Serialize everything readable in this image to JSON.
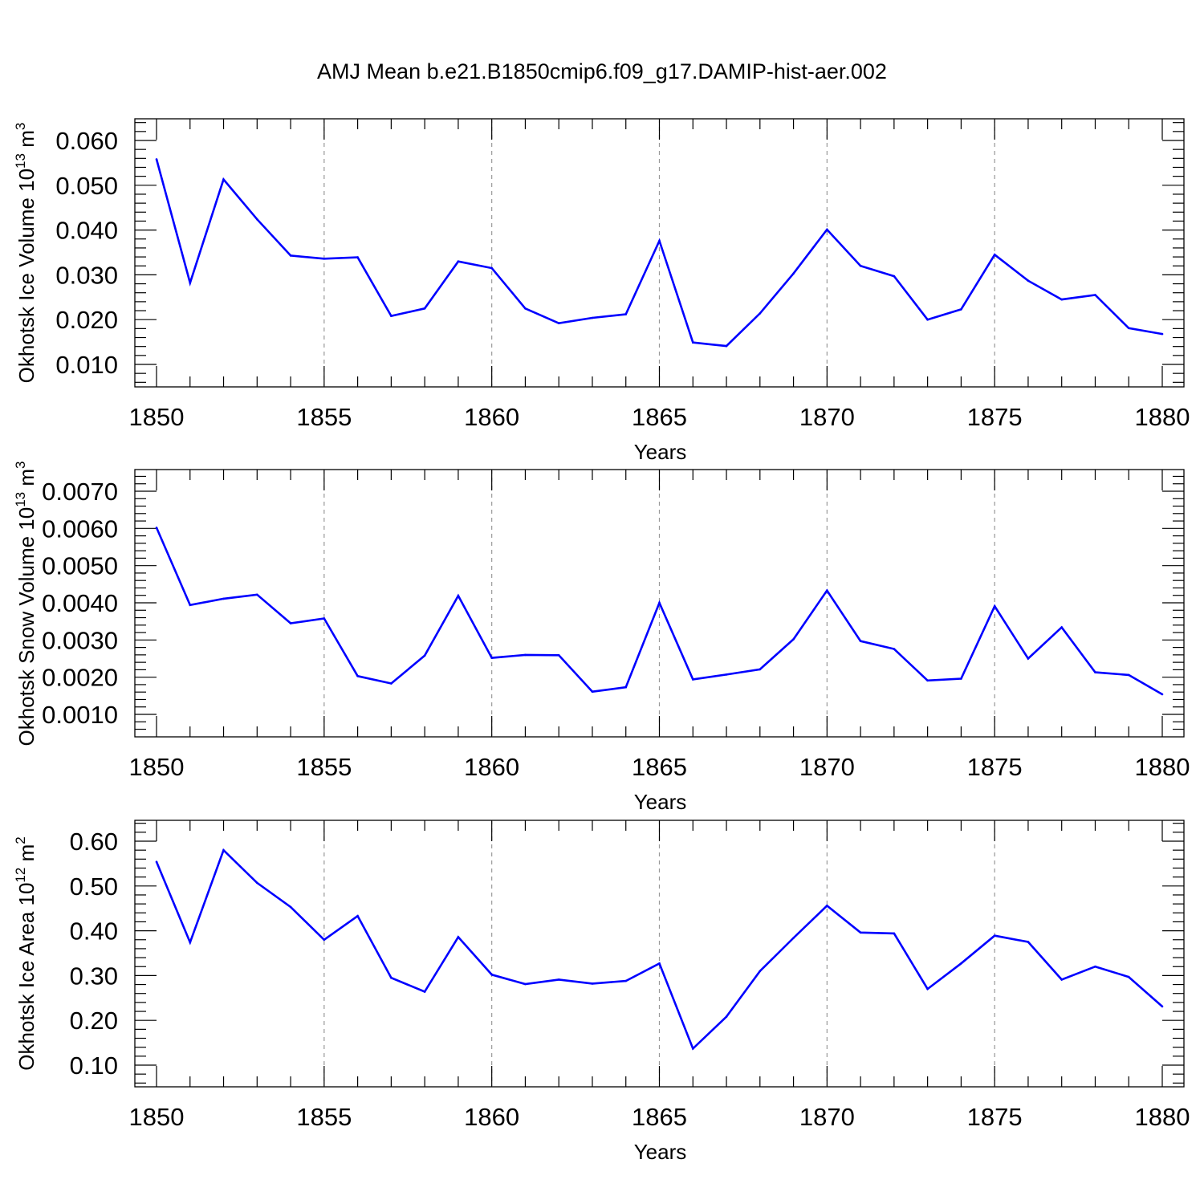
{
  "figure": {
    "title": "AMJ Mean b.e21.B1850cmip6.f09_g17.DAMIP-hist-aer.002",
    "line_color": "#0000ff",
    "grid_color": "#999999"
  },
  "chart_data": [
    {
      "type": "line",
      "title": "",
      "xlabel": "Years",
      "ylabel": {
        "main": "Okhotsk Ice Volume 10",
        "exp": "13",
        "unit": " m",
        "unit_exp": "3"
      },
      "xlim": [
        1850,
        1880
      ],
      "ylim": [
        0.01,
        0.06
      ],
      "x_ticks": [
        "1850",
        "1855",
        "1860",
        "1865",
        "1870",
        "1875",
        "1880"
      ],
      "y_ticks": [
        "0.010",
        "0.020",
        "0.030",
        "0.040",
        "0.050",
        "0.060"
      ],
      "grid": "vertical dashed at major x ticks",
      "x": [
        1850,
        1851,
        1852,
        1853,
        1854,
        1855,
        1856,
        1857,
        1858,
        1859,
        1860,
        1861,
        1862,
        1863,
        1864,
        1865,
        1866,
        1867,
        1868,
        1869,
        1870,
        1871,
        1872,
        1873,
        1874,
        1875,
        1876,
        1877,
        1878,
        1879,
        1880
      ],
      "values": [
        0.0558,
        0.0282,
        0.0513,
        0.0424,
        0.0343,
        0.0336,
        0.0339,
        0.0208,
        0.0225,
        0.033,
        0.0315,
        0.0225,
        0.0192,
        0.0204,
        0.0212,
        0.0376,
        0.0149,
        0.0141,
        0.0214,
        0.0303,
        0.0401,
        0.032,
        0.0297,
        0.02,
        0.0223,
        0.0345,
        0.0287,
        0.0245,
        0.0255,
        0.0181,
        0.0168
      ]
    },
    {
      "type": "line",
      "title": "",
      "xlabel": "Years",
      "ylabel": {
        "main": "Okhotsk Snow Volume 10",
        "exp": "13",
        "unit": " m",
        "unit_exp": "3"
      },
      "xlim": [
        1850,
        1880
      ],
      "ylim": [
        0.001,
        0.007
      ],
      "x_ticks": [
        "1850",
        "1855",
        "1860",
        "1865",
        "1870",
        "1875",
        "1880"
      ],
      "y_ticks": [
        "0.0010",
        "0.0020",
        "0.0030",
        "0.0040",
        "0.0050",
        "0.0060",
        "0.0070"
      ],
      "grid": "vertical dashed at major x ticks",
      "x": [
        1850,
        1851,
        1852,
        1853,
        1854,
        1855,
        1856,
        1857,
        1858,
        1859,
        1860,
        1861,
        1862,
        1863,
        1864,
        1865,
        1866,
        1867,
        1868,
        1869,
        1870,
        1871,
        1872,
        1873,
        1874,
        1875,
        1876,
        1877,
        1878,
        1879,
        1880
      ],
      "values": [
        0.00602,
        0.00394,
        0.00411,
        0.00422,
        0.00345,
        0.00358,
        0.00203,
        0.00183,
        0.00258,
        0.00419,
        0.00252,
        0.0026,
        0.00259,
        0.00161,
        0.00173,
        0.004,
        0.00194,
        0.00207,
        0.00221,
        0.00302,
        0.00433,
        0.00297,
        0.00276,
        0.00191,
        0.00196,
        0.00391,
        0.0025,
        0.00334,
        0.00213,
        0.00206,
        0.00154
      ]
    },
    {
      "type": "line",
      "title": "",
      "xlabel": "Years",
      "ylabel": {
        "main": "Okhotsk Ice Area 10",
        "exp": "12",
        "unit": " m",
        "unit_exp": "2"
      },
      "xlim": [
        1850,
        1880
      ],
      "ylim": [
        0.1,
        0.6
      ],
      "x_ticks": [
        "1850",
        "1855",
        "1860",
        "1865",
        "1870",
        "1875",
        "1880"
      ],
      "y_ticks": [
        "0.10",
        "0.20",
        "0.30",
        "0.40",
        "0.50",
        "0.60"
      ],
      "grid": "vertical dashed at major x ticks",
      "x": [
        1850,
        1851,
        1852,
        1853,
        1854,
        1855,
        1856,
        1857,
        1858,
        1859,
        1860,
        1861,
        1862,
        1863,
        1864,
        1865,
        1866,
        1867,
        1868,
        1869,
        1870,
        1871,
        1872,
        1873,
        1874,
        1875,
        1876,
        1877,
        1878,
        1879,
        1880
      ],
      "values": [
        0.554,
        0.374,
        0.58,
        0.507,
        0.453,
        0.38,
        0.433,
        0.295,
        0.264,
        0.386,
        0.302,
        0.281,
        0.291,
        0.282,
        0.288,
        0.327,
        0.137,
        0.208,
        0.31,
        0.384,
        0.456,
        0.396,
        0.394,
        0.27,
        0.327,
        0.389,
        0.375,
        0.291,
        0.32,
        0.297,
        0.231
      ]
    }
  ]
}
